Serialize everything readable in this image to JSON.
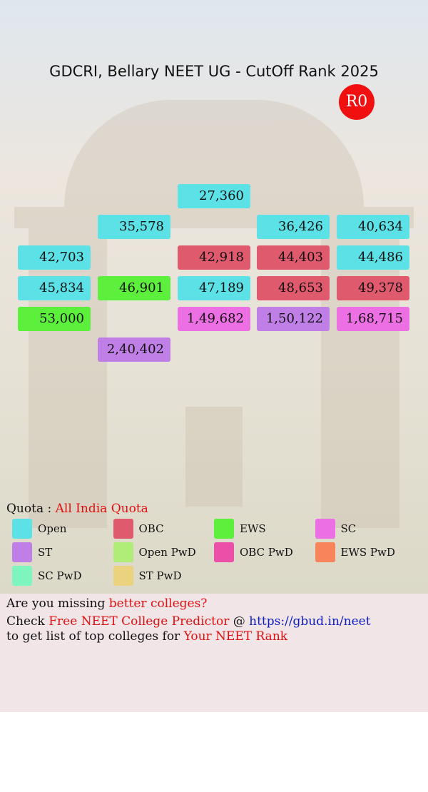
{
  "header": {
    "title": "GDCRI, Bellary NEET UG - CutOff Rank 2025",
    "badge": "R0"
  },
  "rows": [
    [
      null,
      null,
      {
        "value": "27,360",
        "quota": "Open"
      },
      null,
      null
    ],
    [
      null,
      {
        "value": "35,578",
        "quota": "Open"
      },
      null,
      {
        "value": "36,426",
        "quota": "Open"
      },
      {
        "value": "40,634",
        "quota": "Open"
      }
    ],
    [
      {
        "value": "42,703",
        "quota": "Open"
      },
      null,
      {
        "value": "42,918",
        "quota": "OBC"
      },
      {
        "value": "44,403",
        "quota": "OBC"
      },
      {
        "value": "44,486",
        "quota": "Open"
      }
    ],
    [
      {
        "value": "45,834",
        "quota": "Open"
      },
      {
        "value": "46,901",
        "quota": "EWS"
      },
      {
        "value": "47,189",
        "quota": "Open"
      },
      {
        "value": "48,653",
        "quota": "OBC"
      },
      {
        "value": "49,378",
        "quota": "OBC"
      }
    ],
    [
      {
        "value": "53,000",
        "quota": "EWS"
      },
      null,
      {
        "value": "1,49,682",
        "quota": "SC"
      },
      {
        "value": "1,50,122",
        "quota": "ST"
      },
      {
        "value": "1,68,715",
        "quota": "SC"
      }
    ],
    [
      null,
      {
        "value": "2,40,402",
        "quota": "ST"
      },
      null,
      null,
      null
    ]
  ],
  "quota": {
    "label": "Quota :",
    "value": "All India Quota"
  },
  "legend": [
    {
      "name": "Open",
      "color": "#5ce1e6"
    },
    {
      "name": "OBC",
      "color": "#e05a6e"
    },
    {
      "name": "EWS",
      "color": "#5cf03c"
    },
    {
      "name": "SC",
      "color": "#ec6fe3"
    },
    {
      "name": "ST",
      "color": "#c07fe6"
    },
    {
      "name": "Open PwD",
      "color": "#b0ec78"
    },
    {
      "name": "OBC PwD",
      "color": "#ec4fa8"
    },
    {
      "name": "EWS PwD",
      "color": "#f7845a"
    },
    {
      "name": "SC PwD",
      "color": "#7ef5bf"
    },
    {
      "name": "ST PwD",
      "color": "#ead27e"
    }
  ],
  "footer": {
    "line1": [
      "Are you missing",
      "better colleges?"
    ],
    "line2": [
      "Check",
      "Free NEET College Predictor",
      "@",
      "https://gbud.in/neet"
    ],
    "line3": [
      "to get list of top colleges for",
      "Your NEET Rank"
    ]
  }
}
